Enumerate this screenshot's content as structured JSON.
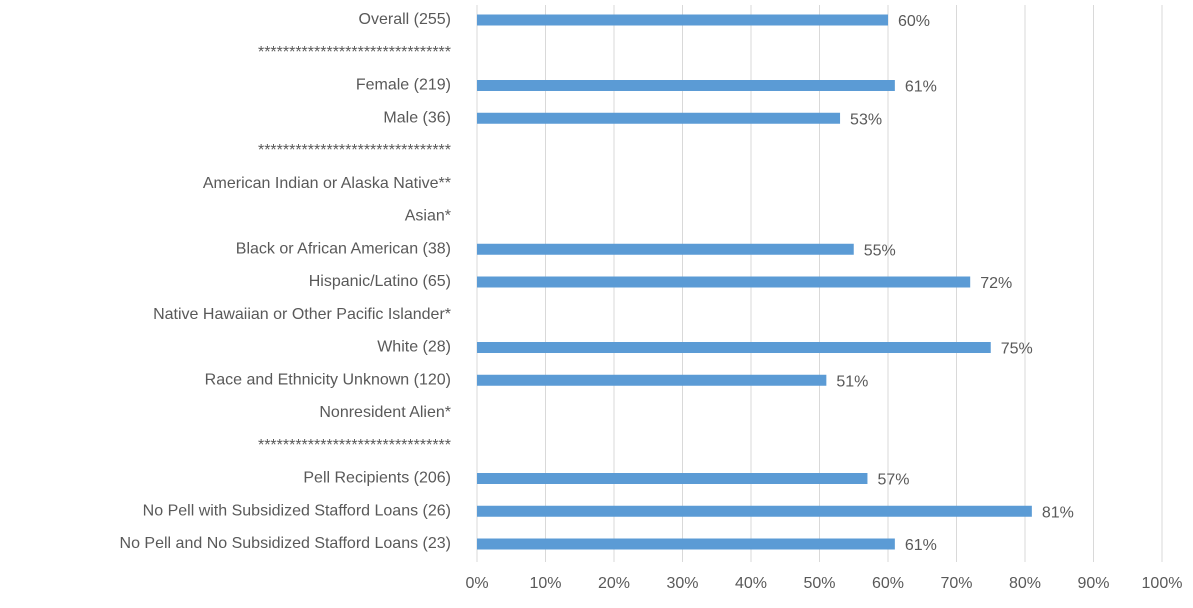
{
  "chart_data": {
    "type": "hbar",
    "categories": [
      "Overall (255)",
      "*******************************",
      "Female (219)",
      "Male (36)",
      "*******************************",
      "American Indian or Alaska Native**",
      "Asian*",
      "Black or African American  (38)",
      "Hispanic/Latino (65)",
      "Native Hawaiian or Other Pacific Islander*",
      "White (28)",
      "Race and Ethnicity Unknown (120)",
      "Nonresident Alien*",
      "*******************************",
      "Pell Recipients (206)",
      "No Pell with Subsidized Stafford Loans (26)",
      "No Pell and No Subsidized Stafford Loans (23)"
    ],
    "values": [
      60,
      null,
      61,
      53,
      null,
      null,
      null,
      55,
      72,
      null,
      75,
      51,
      null,
      null,
      57,
      81,
      61
    ],
    "value_labels": [
      "60%",
      null,
      "61%",
      "53%",
      null,
      null,
      null,
      "55%",
      "72%",
      null,
      "75%",
      "51%",
      null,
      null,
      "57%",
      "81%",
      "61%"
    ],
    "color": "#5b9bd5",
    "xlim": [
      0,
      100
    ],
    "xticks": [
      {
        "value": 0,
        "label": "0%"
      },
      {
        "value": 10,
        "label": "10%"
      },
      {
        "value": 20,
        "label": "20%"
      },
      {
        "value": 30,
        "label": "30%"
      },
      {
        "value": 40,
        "label": "40%"
      },
      {
        "value": 50,
        "label": "50%"
      },
      {
        "value": 60,
        "label": "60%"
      },
      {
        "value": 70,
        "label": "70%"
      },
      {
        "value": 80,
        "label": "80%"
      },
      {
        "value": 90,
        "label": "90%"
      },
      {
        "value": 100,
        "label": "100%"
      }
    ],
    "grid": true
  }
}
